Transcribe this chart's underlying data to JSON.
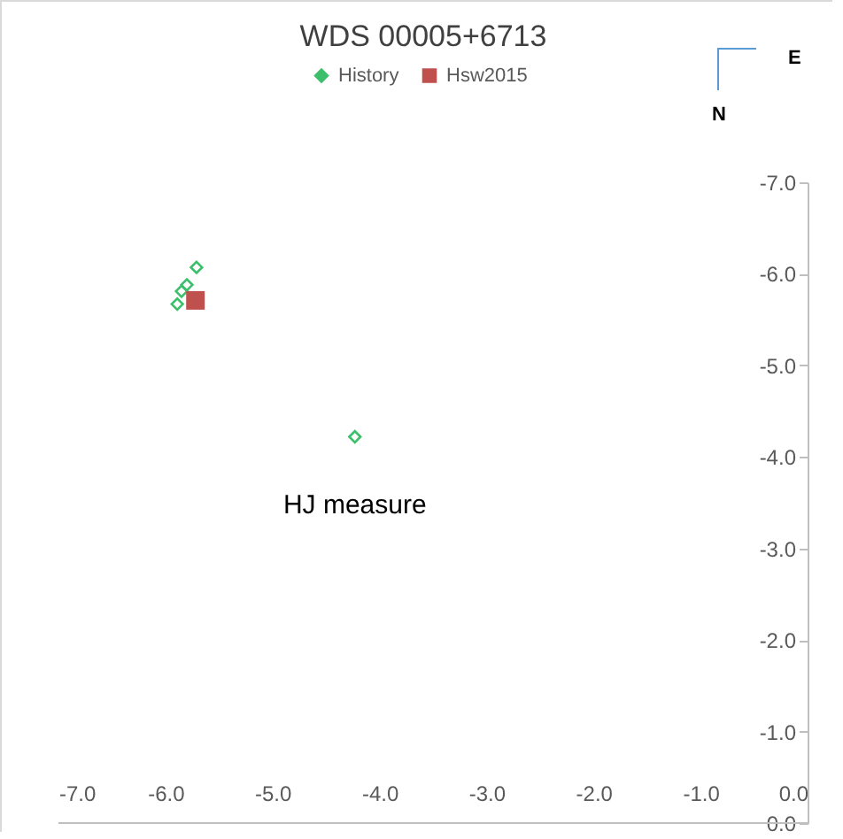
{
  "chart_data": {
    "type": "scatter",
    "title": "WDS 00005+6713",
    "series": [
      {
        "name": "History",
        "color": "#3cbf6a",
        "marker": "diamond",
        "x": [
          -5.71,
          -5.8,
          -5.85,
          -5.89,
          -4.23
        ],
        "values": [
          -6.07,
          -5.88,
          -5.81,
          -5.67,
          -4.22
        ]
      },
      {
        "name": "Hsw2015",
        "color": "#c0504d",
        "marker": "square",
        "x": [
          -5.72
        ],
        "values": [
          -5.71
        ]
      }
    ],
    "xlim": [
      -7,
      0
    ],
    "xticks": [
      {
        "value": -7,
        "label": "-7.0"
      },
      {
        "value": -6,
        "label": "-6.0"
      },
      {
        "value": -5,
        "label": "-5.0"
      },
      {
        "value": -4,
        "label": "-4.0"
      },
      {
        "value": -3,
        "label": "-3.0"
      },
      {
        "value": -2,
        "label": "-2.0"
      },
      {
        "value": -1,
        "label": "-1.0"
      },
      {
        "value": 0,
        "label": "0.0"
      }
    ],
    "ylim": [
      0,
      -7
    ],
    "yticks": [
      {
        "value": -7,
        "label": "-7.0"
      },
      {
        "value": -6,
        "label": "-6.0"
      },
      {
        "value": -5,
        "label": "-5.0"
      },
      {
        "value": -4,
        "label": "-4.0"
      },
      {
        "value": -3,
        "label": "-3.0"
      },
      {
        "value": -2,
        "label": "-2.0"
      },
      {
        "value": -1,
        "label": "-1.0"
      },
      {
        "value": 0,
        "label": "0.0"
      }
    ],
    "annotations": [
      {
        "text": "HJ measure",
        "x": -4.23,
        "y": -4.22
      },
      "E",
      "N"
    ],
    "legend": "top",
    "grid": false
  }
}
